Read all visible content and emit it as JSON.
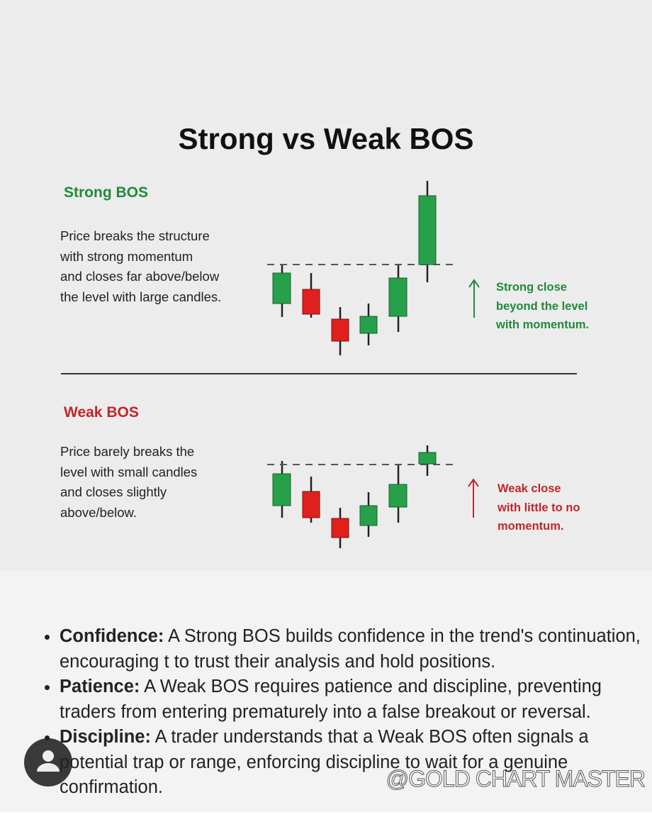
{
  "title": "Strong vs Weak BOS",
  "strong": {
    "heading": "Strong BOS",
    "description": [
      "Price breaks the structure",
      "with strong momentum",
      "and closes far above/below",
      "the level with large candles."
    ],
    "note": [
      "Strong close",
      "beyond the level",
      "with momentum."
    ]
  },
  "weak": {
    "heading": "Weak BOS",
    "description": [
      "Price barely breaks the",
      "level with small candles",
      "and closes slightly",
      "above/below."
    ],
    "note": [
      "Weak close",
      "with little to no",
      "momentum."
    ]
  },
  "bullets": [
    {
      "lead": "Confidence:",
      "text": " A Strong BOS builds confidence in the trend's continuation, encouraging t to trust their analysis and hold positions."
    },
    {
      "lead": "Patience:",
      "text": " A Weak BOS requires patience and discipline, preventing traders from entering prematurely into a false breakout or reversal."
    },
    {
      "lead": "Discipline:",
      "text": " A trader understands that a Weak BOS often signals a potential trap or range, enforcing discipline to wait for a genuine confirmation."
    }
  ],
  "watermark": "@GOLD CHART MASTER"
}
